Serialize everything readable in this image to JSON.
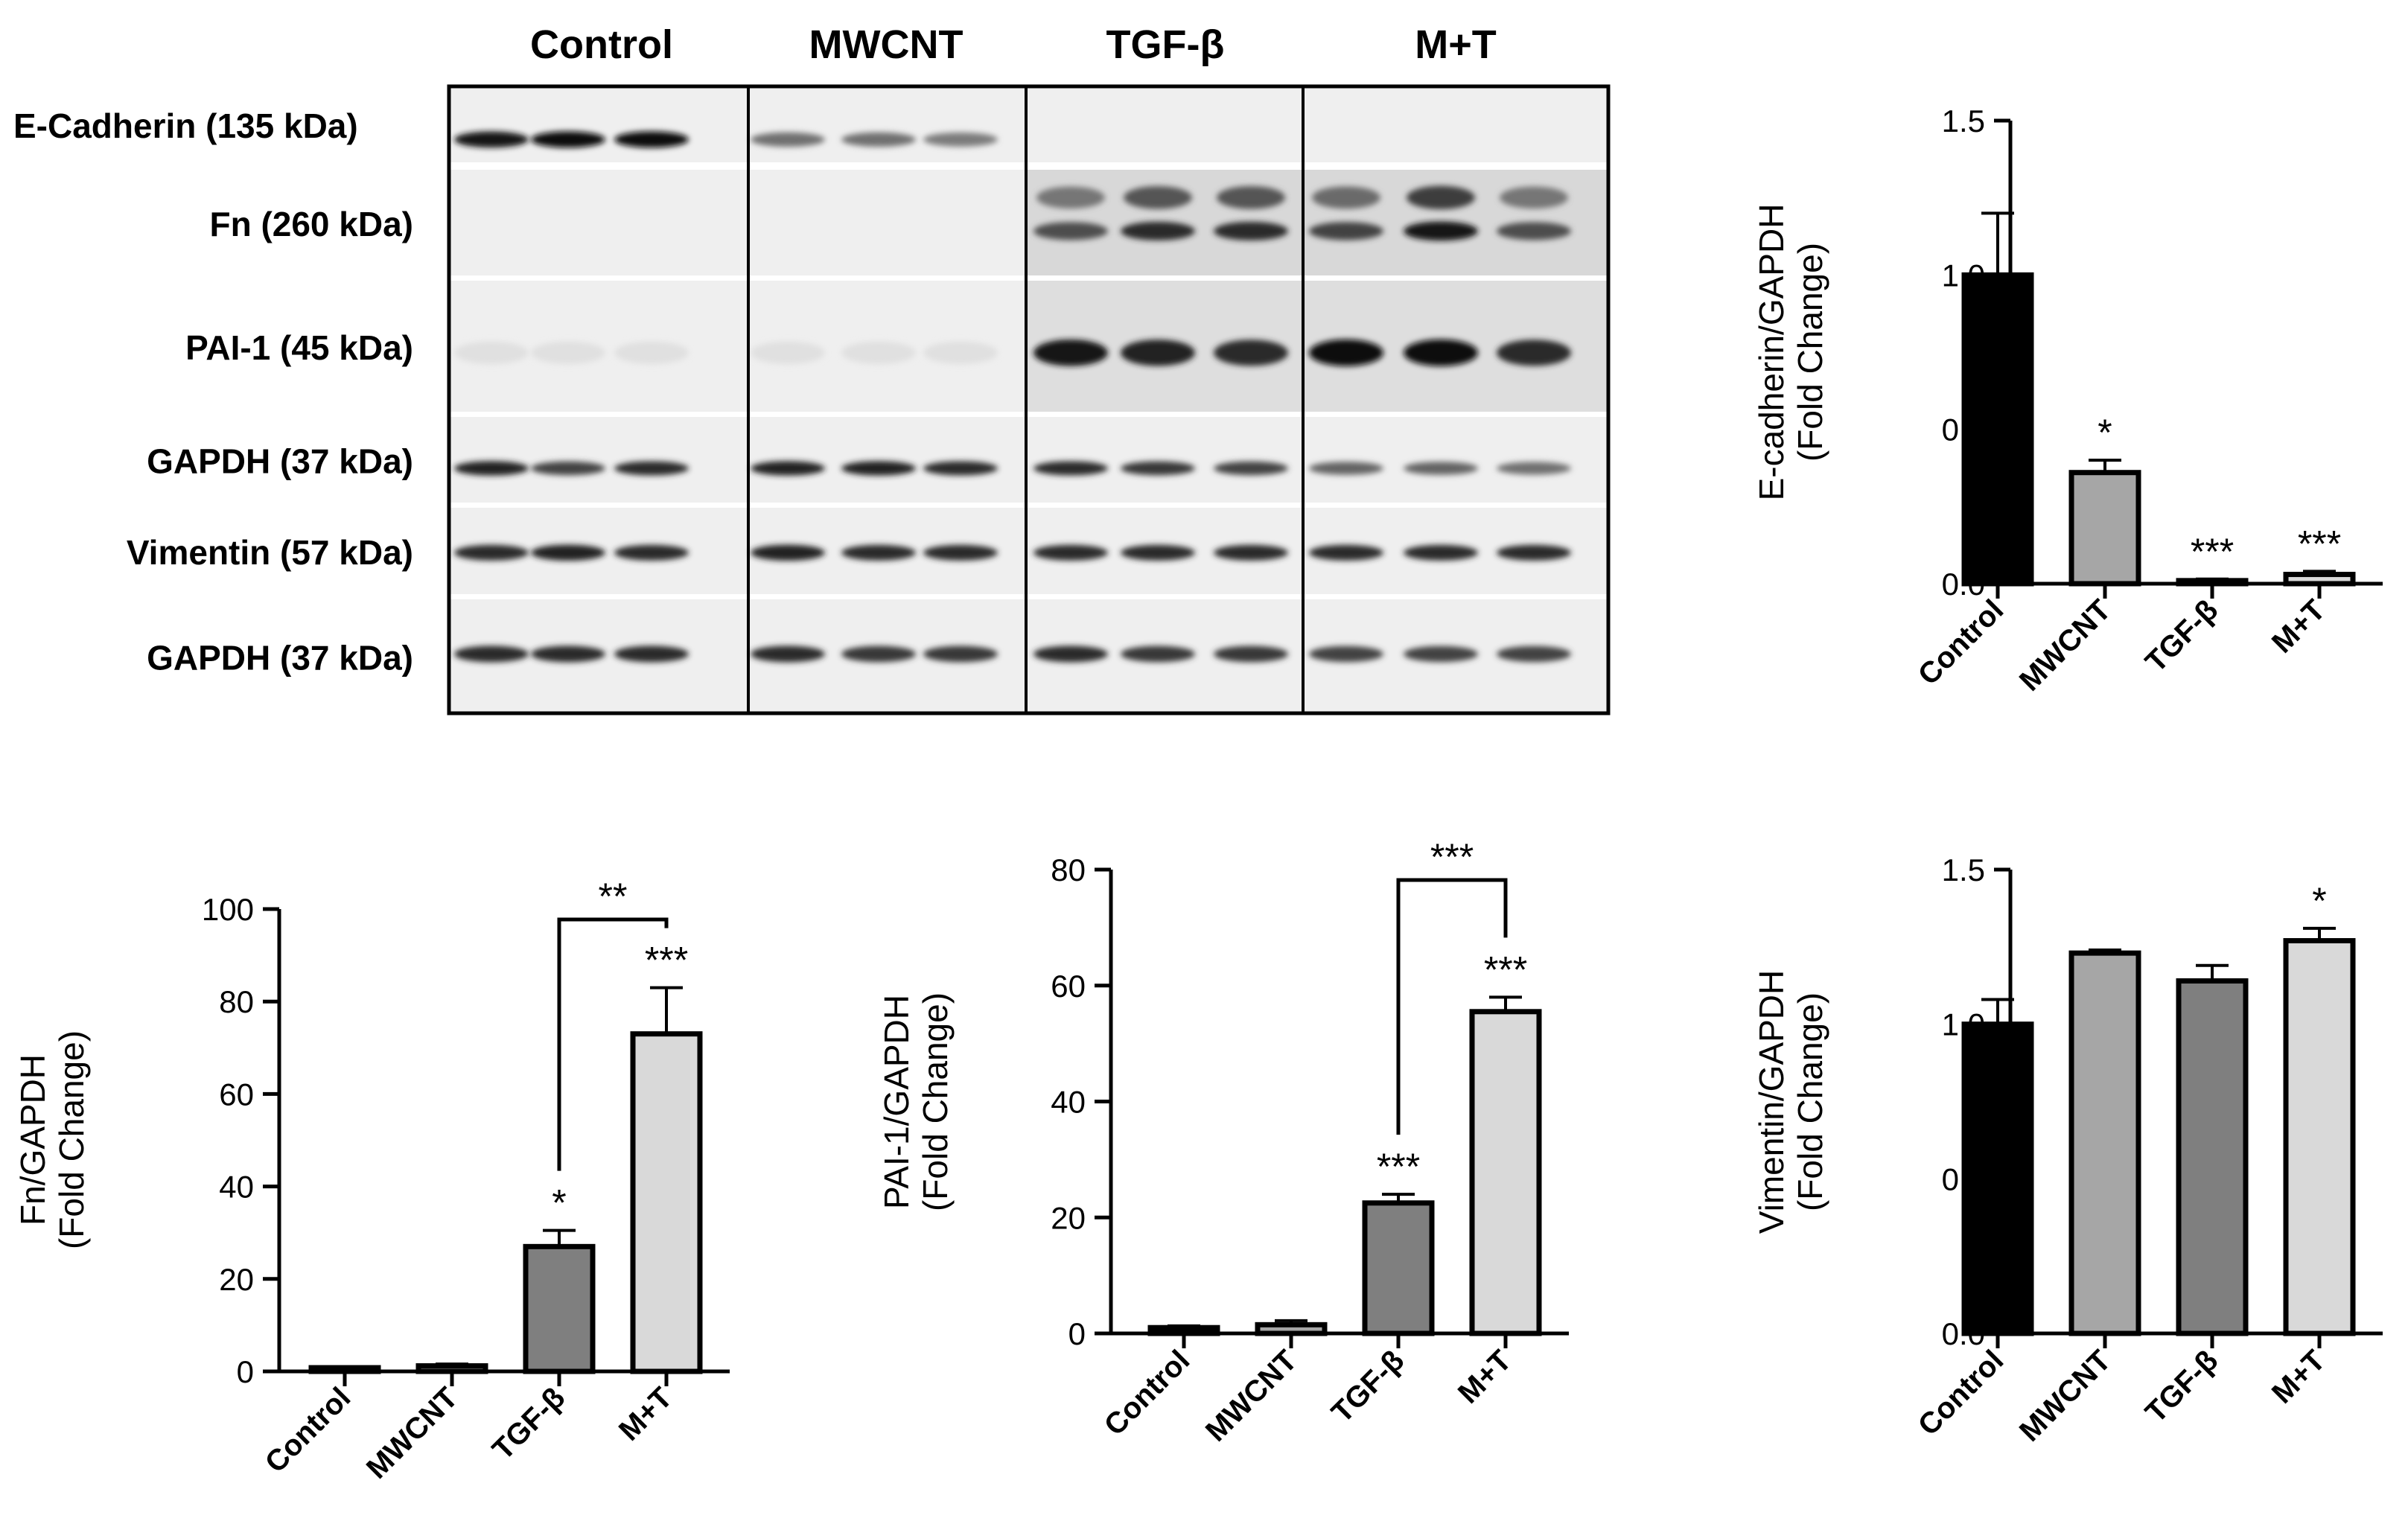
{
  "blot": {
    "groups": [
      "Control",
      "MWCNT",
      "TGF-β",
      "M+T"
    ],
    "rows": [
      {
        "label": "E-Cadherin (135 kDa)",
        "intensity": [
          0.95,
          1.0,
          1.0,
          0.55,
          0.55,
          0.5,
          0,
          0,
          0,
          0,
          0,
          0
        ]
      },
      {
        "label": "Fn (260 kDa)",
        "intensity": [
          0,
          0,
          0,
          0,
          0,
          0,
          0.7,
          0.85,
          0.85,
          0.75,
          0.95,
          0.7
        ]
      },
      {
        "label": "PAI-1 (45 kDa)",
        "intensity": [
          0.05,
          0.05,
          0.05,
          0.05,
          0.05,
          0.05,
          0.95,
          0.9,
          0.85,
          1.0,
          1.0,
          0.85
        ]
      },
      {
        "label": "GAPDH (37 kDa)",
        "intensity": [
          0.9,
          0.75,
          0.85,
          0.9,
          0.9,
          0.85,
          0.85,
          0.8,
          0.75,
          0.6,
          0.6,
          0.55
        ]
      },
      {
        "label": "Vimentin (57 kDa)",
        "intensity": [
          0.85,
          0.9,
          0.85,
          0.9,
          0.85,
          0.85,
          0.85,
          0.85,
          0.85,
          0.85,
          0.85,
          0.85
        ]
      },
      {
        "label": "GAPDH (37 kDa)",
        "intensity": [
          0.85,
          0.85,
          0.85,
          0.85,
          0.8,
          0.8,
          0.85,
          0.8,
          0.8,
          0.75,
          0.75,
          0.75
        ]
      }
    ]
  },
  "chart_data": [
    {
      "type": "bar",
      "categories": [
        "Control",
        "MWCNT",
        "TGF-β",
        "M+T"
      ],
      "values": [
        1.0,
        0.36,
        0.01,
        0.03
      ],
      "errors": [
        0.2,
        0.04,
        0.005,
        0.01
      ],
      "significance": [
        "",
        "*",
        "***",
        "***"
      ],
      "ylabel": [
        "E-cadherin/GAPDH",
        "(Fold Change)"
      ],
      "ylim": [
        0,
        1.5
      ],
      "yticks": [
        "0.0",
        "0.5",
        "1.0",
        "1.5"
      ],
      "colors": [
        "#000000",
        "#a6a6a6",
        "#7f7f7f",
        "#d9d9d9"
      ],
      "bracket": null
    },
    {
      "type": "bar",
      "categories": [
        "Control",
        "MWCNT",
        "TGF-β",
        "M+T"
      ],
      "values": [
        0.8,
        1.2,
        27.0,
        73.0
      ],
      "errors": [
        0.3,
        0.4,
        3.5,
        10.0
      ],
      "significance": [
        "",
        "",
        "*",
        "***"
      ],
      "ylabel": [
        "Fn/GAPDH",
        "(Fold Change)"
      ],
      "ylim": [
        0,
        100
      ],
      "yticks": [
        "0",
        "20",
        "40",
        "60",
        "80",
        "100"
      ],
      "colors": [
        "#000000",
        "#a6a6a6",
        "#7f7f7f",
        "#d9d9d9"
      ],
      "bracket": {
        "from": 2,
        "to": 3,
        "label": "**"
      }
    },
    {
      "type": "bar",
      "categories": [
        "Control",
        "MWCNT",
        "TGF-β",
        "M+T"
      ],
      "values": [
        1.0,
        1.5,
        22.5,
        55.5
      ],
      "errors": [
        0.3,
        0.7,
        1.5,
        2.5
      ],
      "significance": [
        "",
        "",
        "***",
        "***"
      ],
      "ylabel": [
        "PAI-1/GAPDH",
        "(Fold Change)"
      ],
      "ylim": [
        0,
        80
      ],
      "yticks": [
        "0",
        "20",
        "40",
        "60",
        "80"
      ],
      "colors": [
        "#000000",
        "#a6a6a6",
        "#7f7f7f",
        "#d9d9d9"
      ],
      "bracket": {
        "from": 2,
        "to": 3,
        "label": "***"
      }
    },
    {
      "type": "bar",
      "categories": [
        "Control",
        "MWCNT",
        "TGF-β",
        "M+T"
      ],
      "values": [
        1.0,
        1.23,
        1.14,
        1.27
      ],
      "errors": [
        0.08,
        0.01,
        0.05,
        0.04
      ],
      "significance": [
        "",
        "",
        "",
        "*"
      ],
      "ylabel": [
        "Vimentin/GAPDH",
        "(Fold Change)"
      ],
      "ylim": [
        0,
        1.5
      ],
      "yticks": [
        "0.0",
        "0.5",
        "1.0",
        "1.5"
      ],
      "colors": [
        "#000000",
        "#a6a6a6",
        "#7f7f7f",
        "#d9d9d9"
      ],
      "bracket": null
    }
  ]
}
